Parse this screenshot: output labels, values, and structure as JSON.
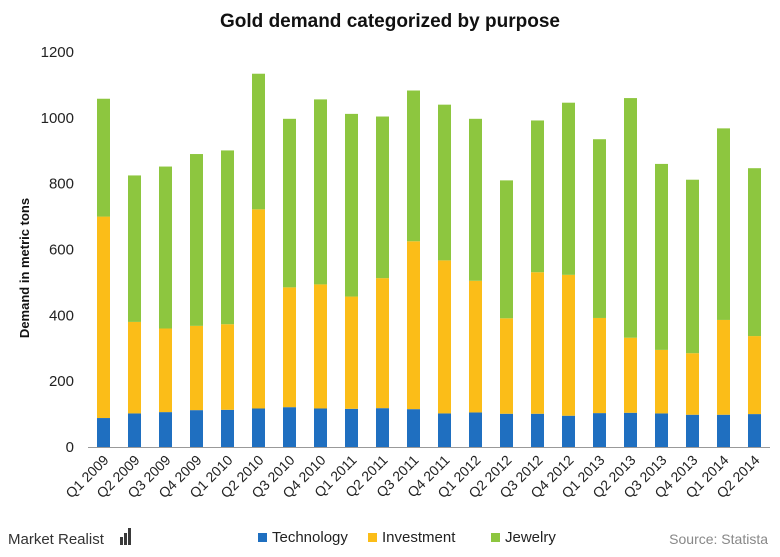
{
  "chart_data": {
    "type": "bar",
    "stacked": true,
    "title": "Gold demand categorized by purpose",
    "ylabel": "Demand in metric tons",
    "xlabel": "",
    "ylim": [
      0,
      1200
    ],
    "yticks": [
      0,
      200,
      400,
      600,
      800,
      1000,
      1200
    ],
    "grid": false,
    "legend_position": "bottom",
    "categories": [
      "Q1 2009",
      "Q2 2009",
      "Q3 2009",
      "Q4 2009",
      "Q1 2010",
      "Q2 2010",
      "Q3 2010",
      "Q4 2010",
      "Q1 2011",
      "Q2 2011",
      "Q3 2011",
      "Q4 2011",
      "Q1 2012",
      "Q2 2012",
      "Q3 2012",
      "Q4 2012",
      "Q1 2013",
      "Q2 2013",
      "Q3 2013",
      "Q4 2013",
      "Q1 2014",
      "Q2 2014"
    ],
    "series": [
      {
        "name": "Technology",
        "color": "#1f6fc0",
        "values": [
          88,
          102,
          106,
          112,
          113,
          117,
          121,
          117,
          116,
          118,
          115,
          102,
          105,
          101,
          101,
          95,
          103,
          104,
          102,
          98,
          98,
          100
        ]
      },
      {
        "name": "Investment",
        "color": "#fbbd18",
        "values": [
          612,
          278,
          254,
          256,
          260,
          605,
          364,
          377,
          341,
          395,
          510,
          465,
          400,
          290,
          430,
          428,
          289,
          228,
          193,
          187,
          288,
          237
        ]
      },
      {
        "name": "Jewelry",
        "color": "#8dc63f",
        "values": [
          358,
          445,
          492,
          522,
          528,
          412,
          512,
          562,
          555,
          491,
          458,
          473,
          492,
          419,
          461,
          523,
          543,
          728,
          565,
          527,
          582,
          510
        ]
      }
    ]
  },
  "footer": {
    "brand": "Market Realist",
    "source": "Source: Statista"
  }
}
